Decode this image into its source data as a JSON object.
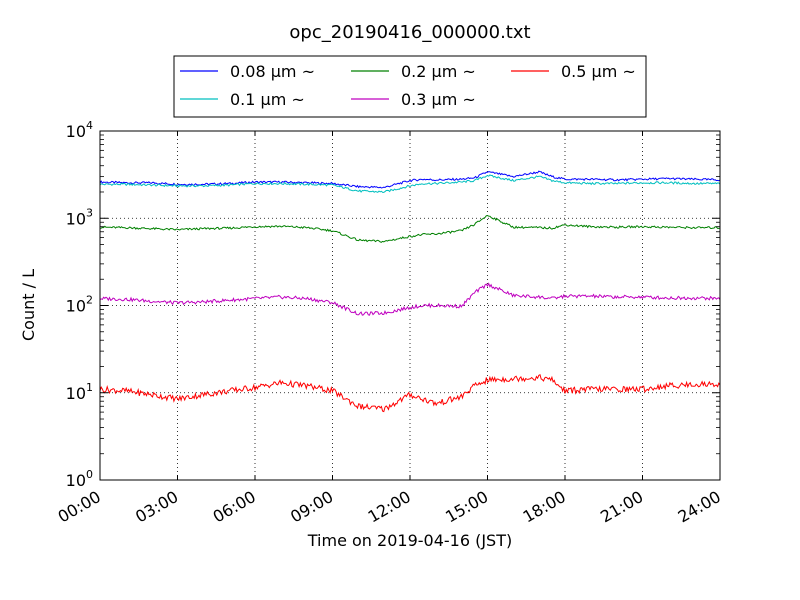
{
  "chart_data": {
    "type": "line",
    "title": "opc_20190416_000000.txt",
    "xlabel": "Time on 2019-04-16 (JST)",
    "ylabel": "Count / L",
    "y_scale": "log",
    "ylim": [
      1,
      10000
    ],
    "y_ticks": [
      {
        "value": 1,
        "base": "10",
        "exp": "0"
      },
      {
        "value": 10,
        "base": "10",
        "exp": "1"
      },
      {
        "value": 100,
        "base": "10",
        "exp": "2"
      },
      {
        "value": 1000,
        "base": "10",
        "exp": "3"
      },
      {
        "value": 10000,
        "base": "10",
        "exp": "4"
      }
    ],
    "xlim": [
      0,
      24
    ],
    "x_unit": "hours",
    "x_ticks": [
      {
        "value": 0,
        "label": "00:00"
      },
      {
        "value": 3,
        "label": "03:00"
      },
      {
        "value": 6,
        "label": "06:00"
      },
      {
        "value": 9,
        "label": "09:00"
      },
      {
        "value": 12,
        "label": "12:00"
      },
      {
        "value": 15,
        "label": "15:00"
      },
      {
        "value": 18,
        "label": "18:00"
      },
      {
        "value": 21,
        "label": "21:00"
      },
      {
        "value": 24,
        "label": "24:00"
      }
    ],
    "grid": true,
    "legend_position": "top",
    "series": [
      {
        "name": "0.08 μm ~",
        "color": "#0000ff",
        "x": [
          0,
          1,
          2,
          3,
          4,
          5,
          6,
          7,
          8,
          9,
          10,
          11,
          12,
          12.5,
          13,
          14,
          14.5,
          15,
          16,
          17,
          17.5,
          18,
          19,
          20,
          21,
          22,
          23,
          24
        ],
        "y": [
          2600,
          2550,
          2550,
          2450,
          2450,
          2500,
          2600,
          2600,
          2550,
          2500,
          2300,
          2250,
          2700,
          2800,
          2750,
          2800,
          2900,
          3400,
          3000,
          3400,
          3000,
          2800,
          2800,
          2750,
          2800,
          2850,
          2800,
          2750
        ]
      },
      {
        "name": "0.1 μm ~",
        "color": "#00bfbf",
        "x": [
          0,
          1,
          2,
          3,
          4,
          5,
          6,
          7,
          8,
          9,
          10,
          11,
          12,
          12.5,
          13,
          14,
          14.5,
          15,
          16,
          17,
          17.5,
          18,
          19,
          20,
          21,
          22,
          23,
          24
        ],
        "y": [
          2450,
          2450,
          2400,
          2350,
          2350,
          2400,
          2500,
          2500,
          2450,
          2400,
          2050,
          2000,
          2350,
          2500,
          2500,
          2600,
          2700,
          3100,
          2700,
          3000,
          2700,
          2550,
          2500,
          2500,
          2550,
          2550,
          2500,
          2500
        ]
      },
      {
        "name": "0.2 μm ~",
        "color": "#008000",
        "x": [
          0,
          1,
          2,
          3,
          4,
          5,
          6,
          7,
          8,
          9,
          10,
          11,
          12,
          12.5,
          13,
          14,
          14.5,
          15,
          16,
          17,
          17.5,
          18,
          19,
          20,
          21,
          22,
          23,
          24
        ],
        "y": [
          790,
          780,
          760,
          740,
          760,
          770,
          800,
          810,
          780,
          720,
          560,
          540,
          620,
          650,
          660,
          720,
          850,
          1080,
          790,
          780,
          770,
          840,
          800,
          790,
          800,
          790,
          780,
          780
        ]
      },
      {
        "name": "0.3 μm ~",
        "color": "#bf00bf",
        "x": [
          0,
          1,
          2,
          3,
          4,
          5,
          6,
          7,
          8,
          9,
          10,
          11,
          12,
          12.5,
          13,
          14,
          14.5,
          15,
          16,
          17,
          17.5,
          18,
          19,
          20,
          21,
          22,
          23,
          24
        ],
        "y": [
          120,
          118,
          112,
          107,
          110,
          115,
          120,
          125,
          120,
          108,
          80,
          82,
          95,
          100,
          100,
          98,
          140,
          175,
          130,
          125,
          120,
          128,
          128,
          125,
          125,
          122,
          122,
          120
        ]
      },
      {
        "name": "0.5 μm ~",
        "color": "#ff0000",
        "x": [
          0,
          1,
          2,
          3,
          4,
          5,
          6,
          7,
          8,
          9,
          10,
          11,
          12,
          12.5,
          13,
          14,
          14.5,
          15,
          16,
          17,
          17.5,
          18,
          19,
          20,
          21,
          22,
          23,
          24
        ],
        "y": [
          11,
          10.5,
          9.5,
          8.5,
          9.5,
          10.5,
          11.5,
          13,
          12,
          10.5,
          7,
          6.5,
          9.5,
          8.5,
          7.5,
          9,
          12,
          14,
          14.5,
          15,
          14,
          10.5,
          11,
          11,
          11,
          12,
          12.5,
          12.5
        ]
      }
    ]
  }
}
